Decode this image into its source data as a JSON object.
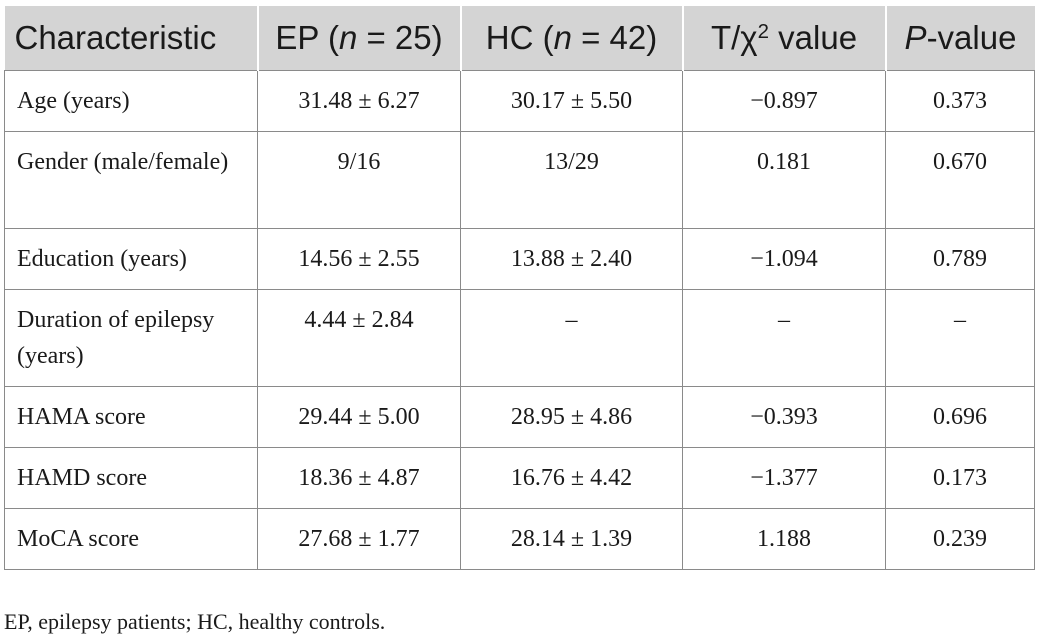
{
  "table": {
    "headers": [
      {
        "pre": "Characteristic",
        "italic": "",
        "post": ""
      },
      {
        "pre": "EP (",
        "italic": "n",
        "post": " = 25)"
      },
      {
        "pre": "HC (",
        "italic": "n",
        "post": " = 42)"
      },
      {
        "pre": "T/χ",
        "sup": "2",
        "post": " value"
      },
      {
        "pre": "",
        "italic": "P",
        "post": "-value"
      }
    ],
    "rows": [
      {
        "label": "Age (years)",
        "ep": "31.48 ± 6.27",
        "hc": "30.17 ± 5.50",
        "stat": "−0.897",
        "p": "0.373"
      },
      {
        "label": "Gender (male/female)",
        "ep": "9/16",
        "hc": "13/29",
        "stat": "0.181",
        "p": "0.670"
      },
      {
        "label": "Education (years)",
        "ep": "14.56 ± 2.55",
        "hc": "13.88 ± 2.40",
        "stat": "−1.094",
        "p": "0.789"
      },
      {
        "label": "Duration of epilepsy (years)",
        "ep": "4.44 ± 2.84",
        "hc": "–",
        "stat": "–",
        "p": "–"
      },
      {
        "label": "HAMA score",
        "ep": "29.44 ± 5.00",
        "hc": "28.95 ± 4.86",
        "stat": "−0.393",
        "p": "0.696"
      },
      {
        "label": "HAMD score",
        "ep": "18.36 ± 4.87",
        "hc": "16.76 ± 4.42",
        "stat": "−1.377",
        "p": "0.173"
      },
      {
        "label": "MoCA score",
        "ep": "27.68 ± 1.77",
        "hc": "28.14 ± 1.39",
        "stat": "1.188",
        "p": "0.239"
      }
    ]
  },
  "footnote": "EP, epilepsy patients; HC, healthy controls."
}
